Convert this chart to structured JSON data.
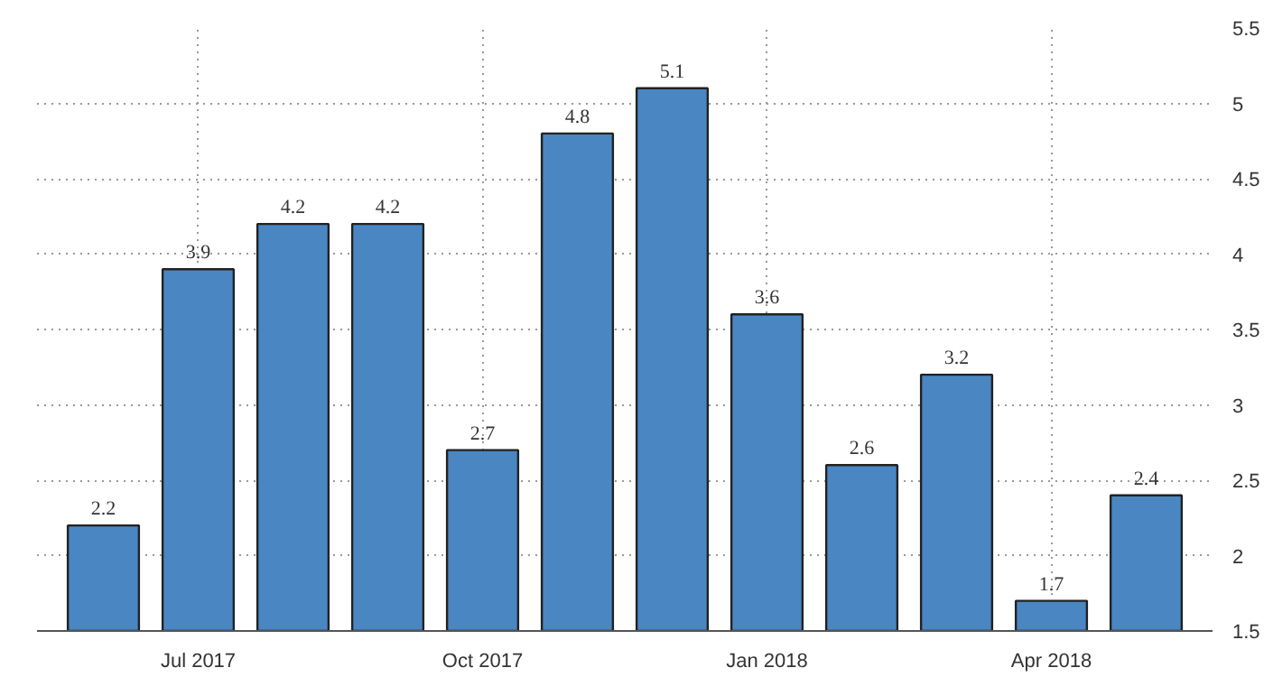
{
  "chart_data": {
    "type": "bar",
    "categories": [
      null,
      "Jul 2017",
      null,
      null,
      "Oct 2017",
      null,
      null,
      "Jan 2018",
      null,
      null,
      "Apr 2018",
      null
    ],
    "values": [
      2.2,
      3.9,
      4.2,
      4.2,
      2.7,
      4.8,
      5.1,
      3.6,
      2.6,
      3.2,
      1.7,
      2.4
    ],
    "color": "#4a86c2",
    "ylim": [
      1.5,
      5.5
    ],
    "yticks": [
      1.5,
      2,
      2.5,
      3,
      3.5,
      4,
      4.5,
      5,
      5.5
    ],
    "grid": true,
    "data_labels": true
  }
}
